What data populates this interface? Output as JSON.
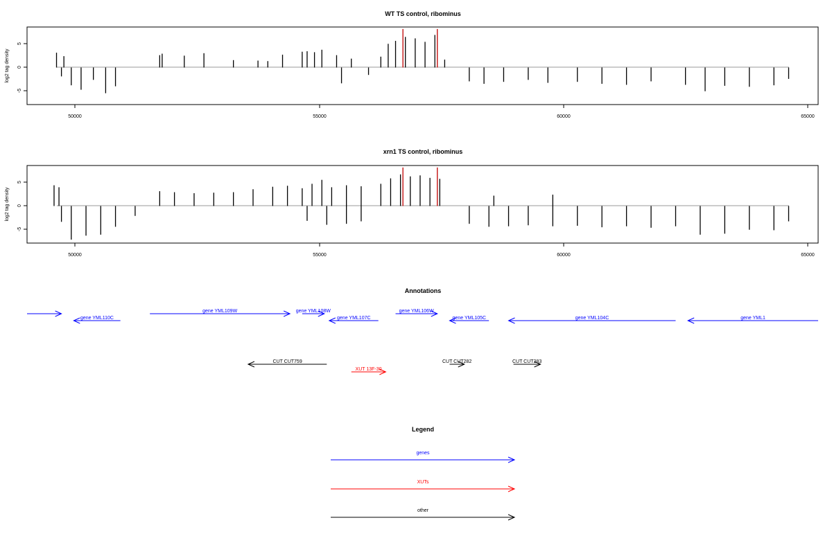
{
  "chart_data": [
    {
      "type": "bar",
      "title": "WT TS control, ribominus",
      "xlabel": "",
      "ylabel": "log2 tag density",
      "xlim": [
        49100,
        65200
      ],
      "ylim": [
        -7.5,
        8.2
      ],
      "x_ticks": [
        "50000",
        "55000",
        "60000",
        "65000"
      ],
      "y_ticks": [
        "5",
        "0",
        "-5"
      ],
      "highlight_color": "#c00000",
      "bar_color": "#000000",
      "series": [
        {
          "x": [
            49700,
            49850,
            51800,
            51850,
            52300,
            52700,
            53300,
            53800,
            54000,
            54300,
            54700,
            54800,
            54950,
            55100,
            55400,
            55700,
            56300,
            56450,
            56600,
            56800,
            57000,
            57200,
            57400,
            57600
          ],
          "values": [
            3.0,
            2.3,
            2.5,
            2.8,
            2.4,
            2.9,
            1.5,
            1.4,
            1.3,
            2.6,
            3.2,
            3.3,
            3.1,
            3.6,
            2.5,
            1.8,
            2.2,
            4.8,
            5.4,
            6.2,
            5.9,
            5.2,
            6.6,
            1.6
          ]
        },
        {
          "x": [
            49800,
            50000,
            50200,
            50450,
            50700,
            50900,
            55500,
            56050,
            58100,
            58400,
            58800,
            59300,
            59700,
            60300,
            60800,
            61300,
            61800,
            62500,
            62900,
            63300,
            63800,
            64300,
            64600
          ],
          "values": [
            -1.8,
            -3.6,
            -4.5,
            -2.5,
            -5.2,
            -3.8,
            -3.2,
            -1.5,
            -2.8,
            -3.3,
            -2.9,
            -2.5,
            -3.1,
            -2.9,
            -3.3,
            -3.5,
            -2.8,
            -3.5,
            -4.8,
            -3.7,
            -3.9,
            -3.6,
            -2.3
          ]
        },
        {
          "x": [
            56750,
            57450
          ],
          "values": [
            7.8,
            7.8
          ]
        }
      ]
    },
    {
      "type": "bar",
      "title": "xrn1 TS control, ribominus",
      "xlabel": "",
      "ylabel": "log2 tag density",
      "xlim": [
        49100,
        65200
      ],
      "ylim": [
        -7.5,
        8.2
      ],
      "x_ticks": [
        "50000",
        "55000",
        "60000",
        "65000"
      ],
      "y_ticks": [
        "5",
        "0",
        "-5"
      ],
      "highlight_color": "#c00000",
      "bar_color": "#000000",
      "series": [
        {
          "x": [
            49650,
            49750,
            51800,
            52100,
            52500,
            52900,
            53300,
            53700,
            54100,
            54400,
            54700,
            54900,
            55100,
            55300,
            55600,
            55900,
            56300,
            56500,
            56700,
            56900,
            57100,
            57300,
            57500,
            58600,
            59800
          ],
          "values": [
            4.2,
            3.8,
            3.0,
            2.8,
            2.6,
            2.7,
            2.8,
            3.4,
            3.9,
            4.1,
            3.6,
            4.5,
            5.3,
            3.8,
            4.2,
            4.0,
            4.5,
            5.6,
            6.4,
            6.0,
            6.2,
            5.7,
            5.5,
            2.1,
            2.3
          ]
        },
        {
          "x": [
            49800,
            50000,
            50300,
            50600,
            50900,
            51300,
            54800,
            55200,
            55600,
            55900,
            58100,
            58500,
            58900,
            59300,
            59800,
            60300,
            60800,
            61300,
            61800,
            62300,
            62800,
            63300,
            63800,
            64300,
            64600
          ],
          "values": [
            -3.2,
            -6.8,
            -6.0,
            -5.8,
            -4.2,
            -2.0,
            -3.0,
            -3.8,
            -3.6,
            -3.1,
            -3.6,
            -4.2,
            -4.1,
            -3.9,
            -4.1,
            -4.0,
            -4.3,
            -4.1,
            -4.4,
            -4.1,
            -5.8,
            -5.6,
            -4.8,
            -4.9,
            -3.1
          ]
        },
        {
          "x": [
            56750,
            57450
          ],
          "values": [
            7.8,
            7.8
          ]
        }
      ]
    }
  ],
  "annotations": {
    "title": "Annotations",
    "features": [
      {
        "label": "",
        "start": 49100,
        "end": 49800,
        "strand": "+",
        "kind": "gene",
        "row": 0
      },
      {
        "label": "gene YML110C",
        "start": 50050,
        "end": 51000,
        "strand": "-",
        "kind": "gene",
        "row": 1
      },
      {
        "label": "gene YML109W",
        "start": 51600,
        "end": 54450,
        "strand": "+",
        "kind": "gene",
        "row": 0
      },
      {
        "label": "gene YML108W",
        "start": 54700,
        "end": 55150,
        "strand": "+",
        "kind": "gene",
        "row": 0
      },
      {
        "label": "gene YML107C",
        "start": 55250,
        "end": 56250,
        "strand": "-",
        "kind": "gene",
        "row": 1
      },
      {
        "label": "gene YML106W",
        "start": 56600,
        "end": 57450,
        "strand": "+",
        "kind": "gene",
        "row": 0
      },
      {
        "label": "gene YML105C",
        "start": 57700,
        "end": 58500,
        "strand": "-",
        "kind": "gene",
        "row": 1
      },
      {
        "label": "gene YML104C",
        "start": 58900,
        "end": 62300,
        "strand": "-",
        "kind": "gene",
        "row": 1
      },
      {
        "label": "gene YML1",
        "start": 62550,
        "end": 65200,
        "strand": "-",
        "kind": "gene",
        "row": 1
      },
      {
        "label": "CUT CUT759",
        "start": 53600,
        "end": 55200,
        "strand": "-",
        "kind": "other",
        "row": 2
      },
      {
        "label": "CUT CUT282",
        "start": 57700,
        "end": 58000,
        "strand": "+",
        "kind": "other",
        "row": 2
      },
      {
        "label": "CUT CUT283",
        "start": 59000,
        "end": 59550,
        "strand": "+",
        "kind": "other",
        "row": 2
      },
      {
        "label": "XUT 13F-30",
        "start": 55700,
        "end": 56400,
        "strand": "+",
        "kind": "xut",
        "row": 3
      }
    ]
  },
  "legend": {
    "title": "Legend",
    "items": [
      {
        "label": "genes",
        "color": "#0000ff"
      },
      {
        "label": "XUTs",
        "color": "#ff0000"
      },
      {
        "label": "other",
        "color": "#000000"
      }
    ]
  },
  "colors": {
    "gene": "#0000ff",
    "xut": "#ff0000",
    "other": "#000000",
    "baseline": "#9a9a9a"
  }
}
